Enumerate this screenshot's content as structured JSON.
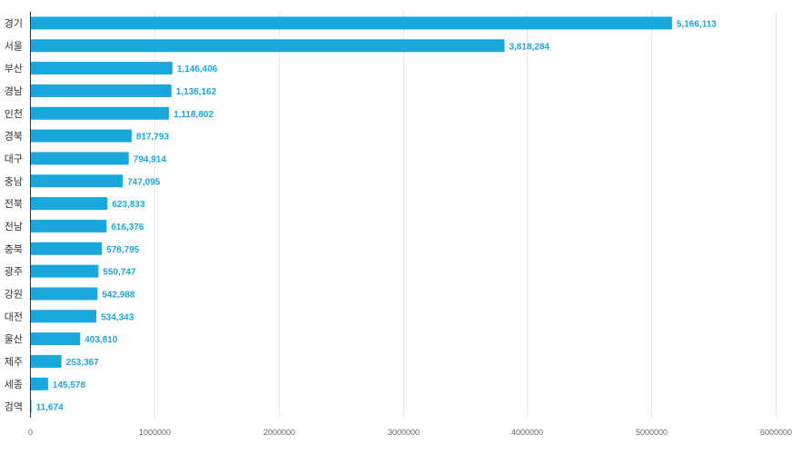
{
  "chart_data": {
    "type": "bar",
    "orientation": "horizontal",
    "categories": [
      "경기",
      "서울",
      "부산",
      "경남",
      "인천",
      "경북",
      "대구",
      "충남",
      "전북",
      "전남",
      "충북",
      "광주",
      "강원",
      "대전",
      "울산",
      "제주",
      "세종",
      "검역"
    ],
    "values": [
      5166113,
      3818284,
      1146406,
      1138162,
      1118802,
      817793,
      794914,
      747095,
      623833,
      616376,
      578795,
      550747,
      542988,
      534343,
      403810,
      253367,
      145578,
      11674
    ],
    "value_labels": [
      "5,166,113",
      "3,818,284",
      "1,146,406",
      "1,138,162",
      "1,118,802",
      "817,793",
      "794,914",
      "747,095",
      "623,833",
      "616,376",
      "578,795",
      "550,747",
      "542,988",
      "534,343",
      "403,810",
      "253,367",
      "145,578",
      "11,674"
    ],
    "xlim": [
      0,
      6000000
    ],
    "x_ticks": [
      0,
      1000000,
      2000000,
      3000000,
      4000000,
      5000000,
      6000000
    ],
    "x_tick_labels": [
      "0",
      "1000000",
      "2000000",
      "3000000",
      "4000000",
      "5000000",
      "6000000"
    ],
    "grid": true,
    "legend": "none",
    "bar_color": "#1aa7de",
    "label_color": "#1aa7de"
  }
}
